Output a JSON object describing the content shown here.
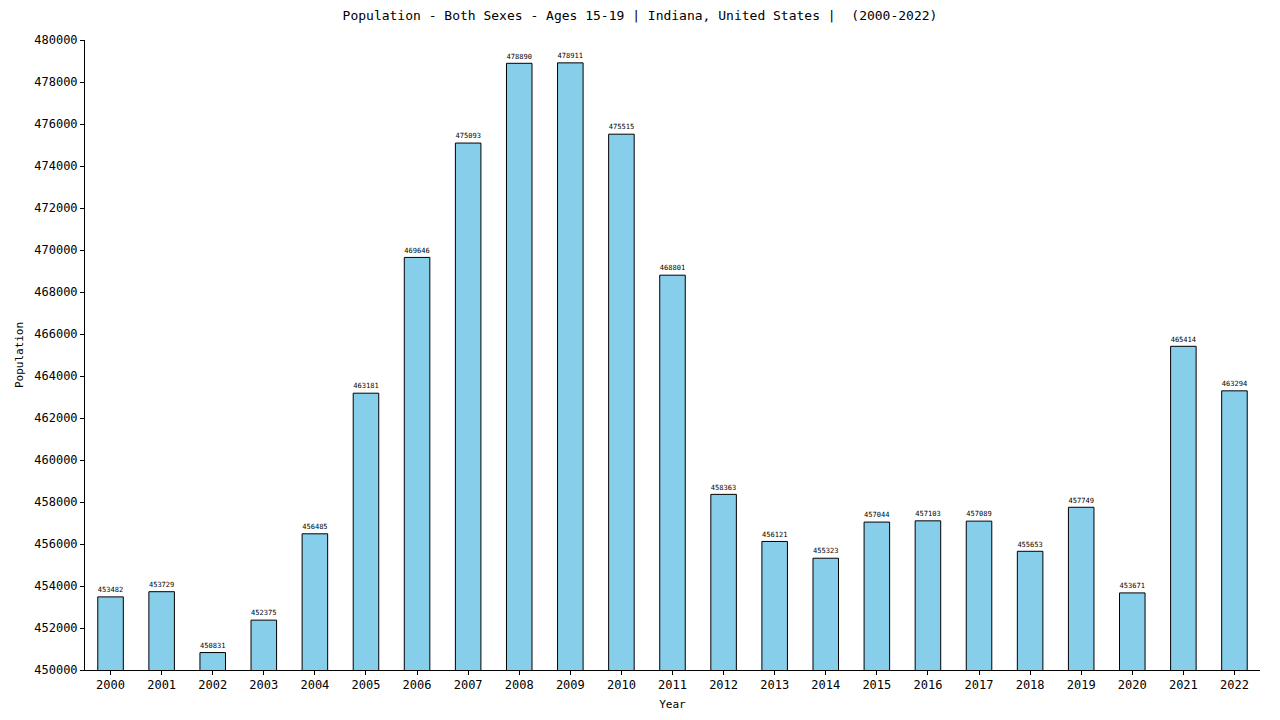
{
  "chart_data": {
    "type": "bar",
    "title": "Population - Both Sexes - Ages 15-19 | Indiana, United States |  (2000-2022)",
    "x_label": "Year",
    "y_label": "Population",
    "categories": [
      "2000",
      "2001",
      "2002",
      "2003",
      "2004",
      "2005",
      "2006",
      "2007",
      "2008",
      "2009",
      "2010",
      "2011",
      "2012",
      "2013",
      "2014",
      "2015",
      "2016",
      "2017",
      "2018",
      "2019",
      "2020",
      "2021",
      "2022"
    ],
    "values": [
      453482,
      453729,
      450831,
      452375,
      456485,
      463181,
      469646,
      475093,
      478890,
      478911,
      475515,
      468801,
      458363,
      456121,
      455323,
      457044,
      457103,
      457089,
      455653,
      457749,
      453671,
      465414,
      463294
    ],
    "color": "#87ceeb",
    "ylim": [
      450000,
      480000
    ],
    "yticks": [
      450000,
      452000,
      454000,
      456000,
      458000,
      460000,
      462000,
      464000,
      466000,
      468000,
      470000,
      472000,
      474000,
      476000,
      478000,
      480000
    ],
    "grid": false,
    "data_labels": true
  }
}
